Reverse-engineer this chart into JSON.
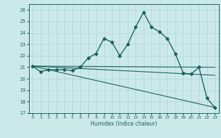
{
  "xlabel": "Humidex (Indice chaleur)",
  "xlim": [
    -0.5,
    23.5
  ],
  "ylim": [
    17,
    26.5
  ],
  "yticks": [
    17,
    18,
    19,
    20,
    21,
    22,
    23,
    24,
    25,
    26
  ],
  "xticks": [
    0,
    1,
    2,
    3,
    4,
    5,
    6,
    7,
    8,
    9,
    10,
    11,
    12,
    13,
    14,
    15,
    16,
    17,
    18,
    19,
    20,
    21,
    22,
    23
  ],
  "bg_color": "#cce9e9",
  "grid_color": "#aad4d4",
  "line_color": "#1a6060",
  "main_line": {
    "x": [
      0,
      1,
      2,
      3,
      4,
      5,
      6,
      7,
      8,
      9,
      10,
      11,
      12,
      13,
      14,
      15,
      16,
      17,
      18,
      19,
      20,
      21,
      22,
      23
    ],
    "y": [
      21.1,
      20.6,
      20.8,
      20.8,
      20.8,
      20.7,
      21.0,
      21.8,
      22.2,
      23.5,
      23.2,
      22.0,
      23.0,
      24.5,
      25.8,
      24.5,
      24.1,
      23.5,
      22.2,
      20.5,
      20.4,
      21.0,
      18.3,
      17.5
    ]
  },
  "straight_lines": [
    {
      "x": [
        0,
        23
      ],
      "y": [
        21.1,
        21.0
      ]
    },
    {
      "x": [
        0,
        23
      ],
      "y": [
        21.1,
        20.3
      ]
    },
    {
      "x": [
        0,
        23
      ],
      "y": [
        21.1,
        17.5
      ]
    }
  ]
}
